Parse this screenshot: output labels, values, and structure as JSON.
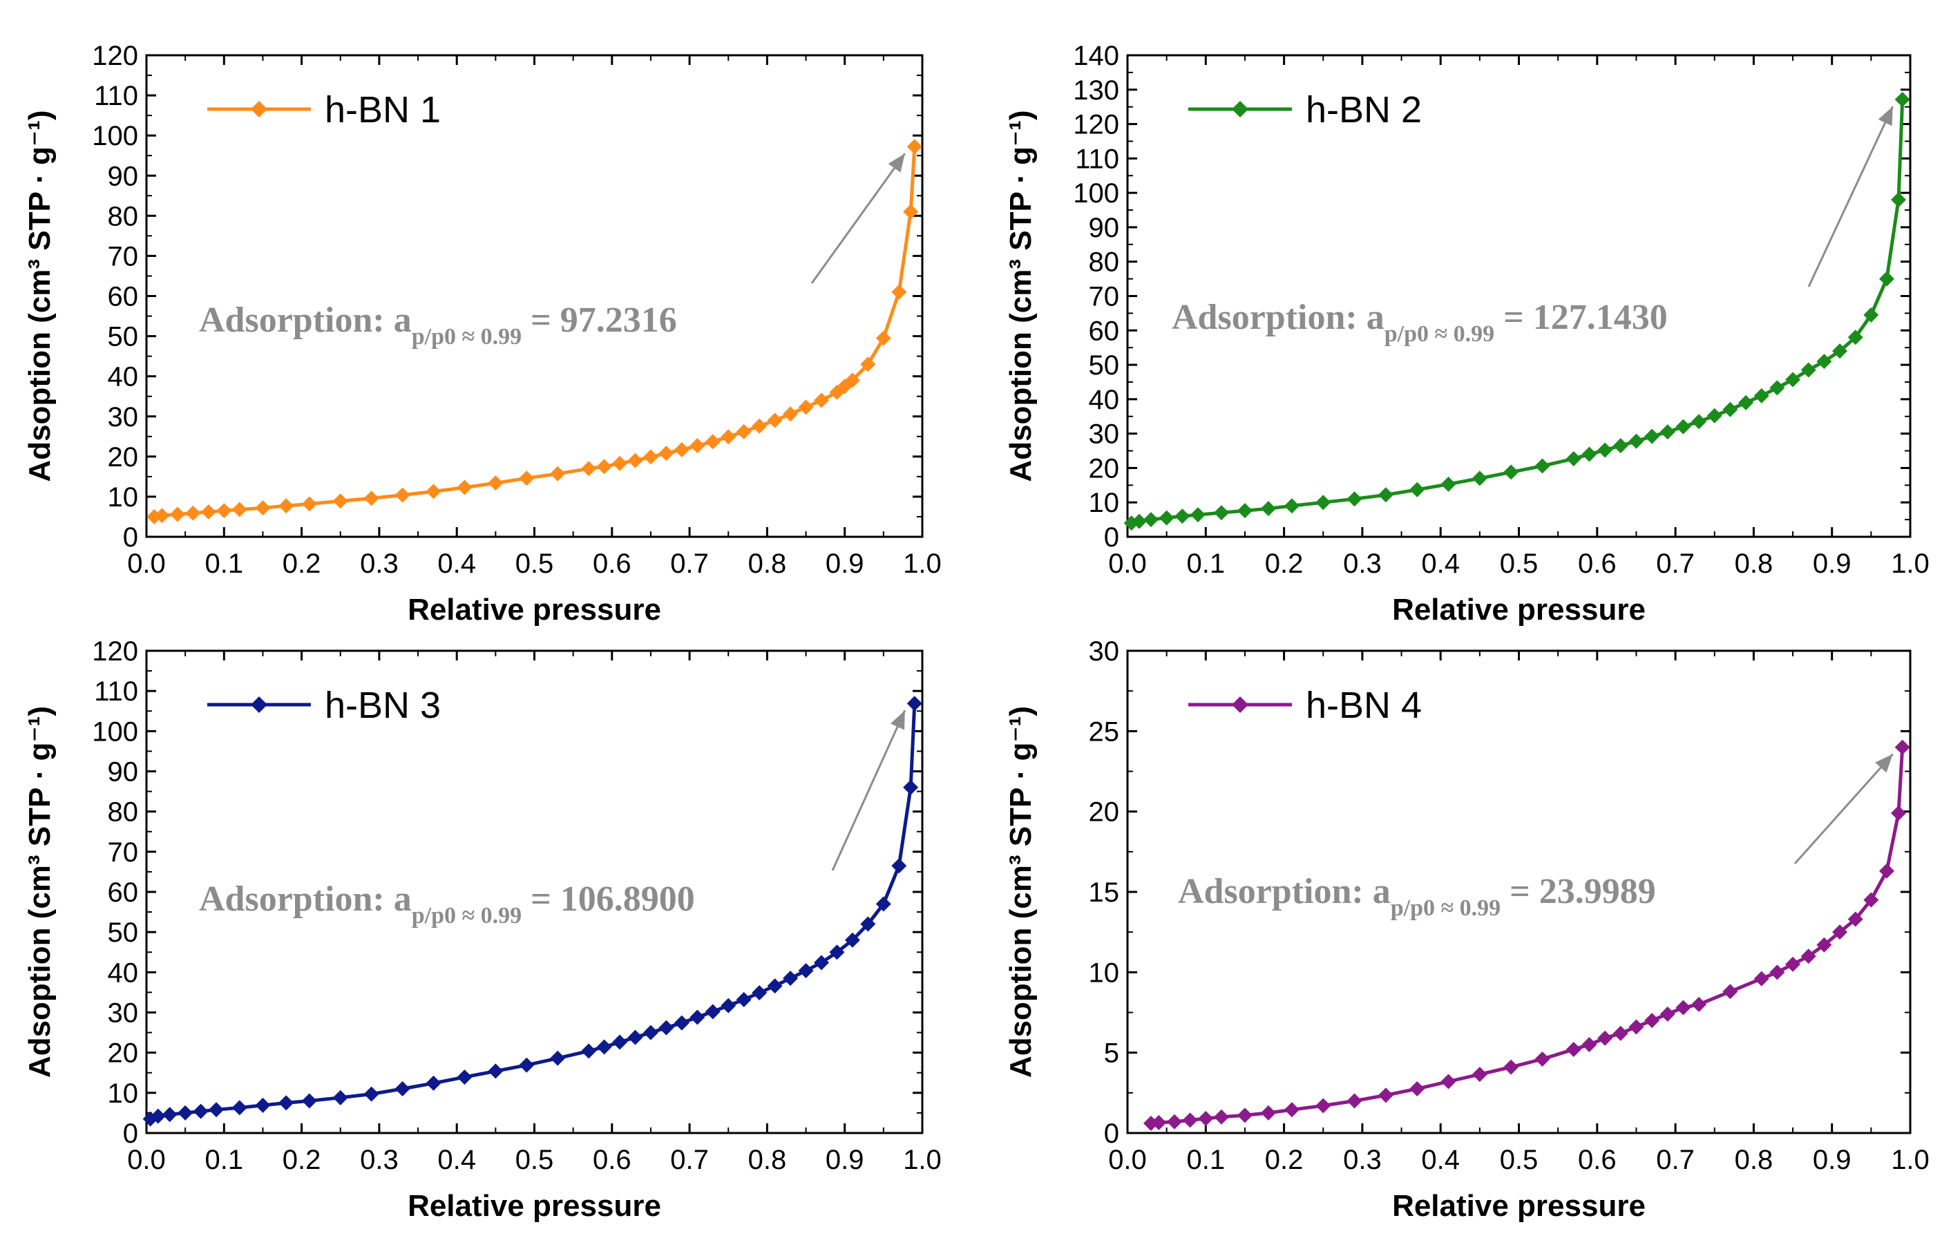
{
  "chart_data": [
    {
      "type": "line",
      "xlabel": "Relative pressure",
      "ylabel": "Adsoption (cm³ STP · g⁻¹)",
      "xlim": [
        0.0,
        1.0
      ],
      "ylim": [
        0,
        120
      ],
      "xticks": [
        "0.0",
        "0.1",
        "0.2",
        "0.3",
        "0.4",
        "0.5",
        "0.6",
        "0.7",
        "0.8",
        "0.9",
        "1.0"
      ],
      "yticks": [
        "0",
        "10",
        "20",
        "30",
        "40",
        "50",
        "60",
        "70",
        "80",
        "90",
        "100",
        "110",
        "120"
      ],
      "legend_position": "top-left",
      "series": [
        {
          "name": "h-BN 1",
          "color": "#ff8c1a",
          "marker": "diamond",
          "x": [
            0.01,
            0.02,
            0.04,
            0.06,
            0.08,
            0.1,
            0.12,
            0.15,
            0.18,
            0.21,
            0.25,
            0.29,
            0.33,
            0.37,
            0.41,
            0.45,
            0.49,
            0.53,
            0.57,
            0.59,
            0.61,
            0.63,
            0.65,
            0.67,
            0.69,
            0.71,
            0.73,
            0.75,
            0.77,
            0.79,
            0.81,
            0.83,
            0.85,
            0.87,
            0.89,
            0.9,
            0.91,
            0.93,
            0.95,
            0.97,
            0.985,
            0.99
          ],
          "y": [
            5.0,
            5.3,
            5.6,
            5.9,
            6.2,
            6.5,
            6.8,
            7.2,
            7.7,
            8.2,
            8.9,
            9.6,
            10.4,
            11.3,
            12.3,
            13.4,
            14.6,
            15.7,
            17.0,
            17.5,
            18.3,
            19.0,
            19.9,
            20.8,
            21.7,
            22.7,
            23.7,
            24.9,
            26.2,
            27.6,
            29.0,
            30.6,
            32.3,
            34.0,
            36.0,
            37.5,
            39.0,
            43.0,
            49.5,
            61.0,
            81.0,
            97.2316
          ]
        }
      ],
      "annotation": {
        "prefix": "Adsorption: a",
        "subscript": "p/p0 ≈ 0.99",
        "suffix": " = 97.2316"
      }
    },
    {
      "type": "line",
      "xlabel": "Relative pressure",
      "ylabel": "Adsoption (cm³ STP · g⁻¹)",
      "xlim": [
        0.0,
        1.0
      ],
      "ylim": [
        0,
        140
      ],
      "xticks": [
        "0.0",
        "0.1",
        "0.2",
        "0.3",
        "0.4",
        "0.5",
        "0.6",
        "0.7",
        "0.8",
        "0.9",
        "1.0"
      ],
      "yticks": [
        "0",
        "10",
        "20",
        "30",
        "40",
        "50",
        "60",
        "70",
        "80",
        "90",
        "100",
        "110",
        "120",
        "130",
        "140"
      ],
      "legend_position": "top-left",
      "series": [
        {
          "name": "h-BN 2",
          "color": "#1a8c1a",
          "marker": "diamond",
          "x": [
            0.005,
            0.015,
            0.03,
            0.05,
            0.07,
            0.09,
            0.12,
            0.15,
            0.18,
            0.21,
            0.25,
            0.29,
            0.33,
            0.37,
            0.41,
            0.45,
            0.49,
            0.53,
            0.57,
            0.59,
            0.61,
            0.63,
            0.65,
            0.67,
            0.69,
            0.71,
            0.73,
            0.75,
            0.77,
            0.79,
            0.81,
            0.83,
            0.85,
            0.87,
            0.89,
            0.91,
            0.93,
            0.95,
            0.97,
            0.985,
            0.99
          ],
          "y": [
            4.0,
            4.5,
            5.0,
            5.5,
            6.0,
            6.4,
            7.0,
            7.6,
            8.2,
            9.0,
            10.0,
            11.0,
            12.2,
            13.7,
            15.3,
            17.0,
            18.8,
            20.6,
            22.7,
            24.0,
            25.2,
            26.5,
            27.8,
            29.2,
            30.5,
            32.0,
            33.5,
            35.2,
            37.0,
            39.0,
            41.0,
            43.3,
            45.7,
            48.5,
            51.0,
            54.0,
            58.0,
            64.5,
            75.0,
            98.0,
            127.143
          ]
        }
      ],
      "annotation": {
        "prefix": "Adsorption: a",
        "subscript": "p/p0 ≈ 0.99",
        "suffix": " = 127.1430"
      }
    },
    {
      "type": "line",
      "xlabel": "Relative pressure",
      "ylabel": "Adsoption (cm³ STP · g⁻¹)",
      "xlim": [
        0.0,
        1.0
      ],
      "ylim": [
        0,
        120
      ],
      "xticks": [
        "0.0",
        "0.1",
        "0.2",
        "0.3",
        "0.4",
        "0.5",
        "0.6",
        "0.7",
        "0.8",
        "0.9",
        "1.0"
      ],
      "yticks": [
        "0",
        "10",
        "20",
        "30",
        "40",
        "50",
        "60",
        "70",
        "80",
        "90",
        "100",
        "110",
        "120"
      ],
      "legend_position": "top-left",
      "series": [
        {
          "name": "h-BN 3",
          "color": "#0d1a8c",
          "marker": "diamond",
          "x": [
            0.005,
            0.015,
            0.03,
            0.05,
            0.07,
            0.09,
            0.12,
            0.15,
            0.18,
            0.21,
            0.25,
            0.29,
            0.33,
            0.37,
            0.41,
            0.45,
            0.49,
            0.53,
            0.57,
            0.59,
            0.61,
            0.63,
            0.65,
            0.67,
            0.69,
            0.71,
            0.73,
            0.75,
            0.77,
            0.79,
            0.81,
            0.83,
            0.85,
            0.87,
            0.89,
            0.91,
            0.93,
            0.95,
            0.97,
            0.985,
            0.99
          ],
          "y": [
            3.5,
            4.2,
            4.6,
            5.0,
            5.4,
            5.8,
            6.3,
            6.9,
            7.5,
            8.0,
            8.8,
            9.7,
            11.0,
            12.4,
            13.9,
            15.4,
            16.9,
            18.6,
            20.4,
            21.4,
            22.6,
            23.8,
            25.0,
            26.2,
            27.4,
            28.8,
            30.2,
            31.7,
            33.2,
            34.9,
            36.6,
            38.5,
            40.4,
            42.4,
            45.0,
            48.0,
            52.0,
            57.0,
            66.5,
            86.0,
            106.89
          ]
        }
      ],
      "annotation": {
        "prefix": "Adsorption: a",
        "subscript": "p/p0 ≈ 0.99",
        "suffix": " = 106.8900"
      }
    },
    {
      "type": "line",
      "xlabel": "Relative pressure",
      "ylabel": "Adsoption (cm³ STP · g⁻¹)",
      "xlim": [
        0.0,
        1.0
      ],
      "ylim": [
        0,
        30
      ],
      "xticks": [
        "0.0",
        "0.1",
        "0.2",
        "0.3",
        "0.4",
        "0.5",
        "0.6",
        "0.7",
        "0.8",
        "0.9",
        "1.0"
      ],
      "yticks": [
        "0",
        "5",
        "10",
        "15",
        "20",
        "25",
        "30"
      ],
      "legend_position": "top-left",
      "series": [
        {
          "name": "h-BN 4",
          "color": "#8c1a8c",
          "marker": "diamond",
          "x": [
            0.03,
            0.04,
            0.06,
            0.08,
            0.1,
            0.12,
            0.15,
            0.18,
            0.21,
            0.25,
            0.29,
            0.33,
            0.37,
            0.41,
            0.45,
            0.49,
            0.53,
            0.57,
            0.59,
            0.61,
            0.63,
            0.65,
            0.67,
            0.69,
            0.71,
            0.73,
            0.77,
            0.81,
            0.83,
            0.85,
            0.87,
            0.89,
            0.91,
            0.93,
            0.95,
            0.97,
            0.985,
            0.99
          ],
          "y": [
            0.6,
            0.65,
            0.7,
            0.8,
            0.9,
            1.0,
            1.1,
            1.25,
            1.45,
            1.7,
            2.0,
            2.35,
            2.75,
            3.2,
            3.65,
            4.1,
            4.6,
            5.2,
            5.5,
            5.9,
            6.2,
            6.6,
            7.0,
            7.4,
            7.8,
            8.0,
            8.8,
            9.6,
            10.0,
            10.5,
            11.0,
            11.7,
            12.5,
            13.3,
            14.5,
            16.3,
            19.9,
            23.9989
          ]
        }
      ],
      "annotation": {
        "prefix": "Adsorption: a",
        "subscript": "p/p0 ≈ 0.99",
        "suffix": " = 23.9989"
      }
    }
  ],
  "annotation_color": "#8c8c8c"
}
